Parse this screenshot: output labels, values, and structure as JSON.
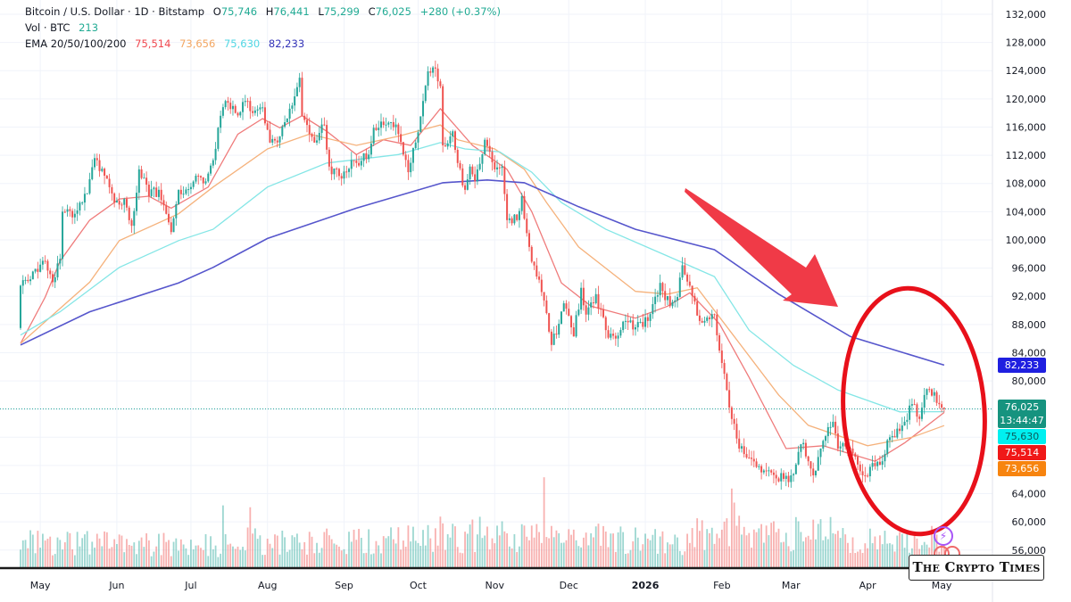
{
  "header": {
    "symbol": "Bitcoin / U.S. Dollar · 1D · Bitstamp",
    "open_label": "O",
    "open": "75,746",
    "high_label": "H",
    "high": "76,441",
    "low_label": "L",
    "low": "75,299",
    "close_label": "C",
    "close": "76,025",
    "change": "+280 (+0.37%)",
    "volume_label": "Vol · BTC",
    "volume": "213",
    "ema_label": "EMA 20/50/100/200",
    "ema20": "75,514",
    "ema50": "73,656",
    "ema100": "75,630",
    "ema200": "82,233"
  },
  "price_labels": {
    "ema200": "82,233",
    "last_price": "76,025",
    "countdown": "13:44:47",
    "ema100": "75,630",
    "ema20": "75,514",
    "ema50": "73,656"
  },
  "colors": {
    "up": "#26a69a",
    "down": "#ef5350",
    "ema20": "#ef7b7b",
    "ema50": "#f5b27c",
    "ema100": "#84e6e6",
    "ema200": "#5656cc",
    "ema20_label": "#f01818",
    "ema50_label": "#f7840f",
    "ema100_label": "#00f0f0",
    "ema200_label": "#1f1fe0",
    "last_price_label": "#16937f",
    "annotation": "#ee1c25"
  },
  "watermark": "The Crypto Times",
  "chart_data": {
    "type": "candlestick",
    "title": "Bitcoin / U.S. Dollar · 1D · Bitstamp",
    "ylim": [
      54000,
      132000
    ],
    "y_ticks": [
      "132,000",
      "128,000",
      "124,000",
      "120,000",
      "116,000",
      "112,000",
      "108,000",
      "104,000",
      "100,000",
      "96,000",
      "92,000",
      "88,000",
      "84,000",
      "80,000",
      "64,000",
      "60,000",
      "56,000"
    ],
    "y_tick_values": [
      132000,
      128000,
      124000,
      120000,
      116000,
      112000,
      108000,
      104000,
      100000,
      96000,
      92000,
      88000,
      84000,
      80000,
      64000,
      60000,
      56000
    ],
    "x_ticks": [
      {
        "date": "2025-05-01",
        "label": "May"
      },
      {
        "date": "2025-06-01",
        "label": "Jun"
      },
      {
        "date": "2025-07-01",
        "label": "Jul"
      },
      {
        "date": "2025-08-01",
        "label": "Aug"
      },
      {
        "date": "2025-09-01",
        "label": "Sep"
      },
      {
        "date": "2025-10-01",
        "label": "Oct"
      },
      {
        "date": "2025-11-01",
        "label": "Nov"
      },
      {
        "date": "2025-12-01",
        "label": "Dec"
      },
      {
        "date": "2026-01-01",
        "label": "2026"
      },
      {
        "date": "2026-02-01",
        "label": "Feb"
      },
      {
        "date": "2026-03-01",
        "label": "Mar"
      },
      {
        "date": "2026-04-01",
        "label": "Apr"
      },
      {
        "date": "2026-05-01",
        "label": "May"
      }
    ],
    "grid": true,
    "close_series": [
      [
        "2025-04-23",
        93500
      ],
      [
        "2025-04-27",
        94400
      ],
      [
        "2025-05-03",
        97000
      ],
      [
        "2025-05-06",
        94000
      ],
      [
        "2025-05-09",
        97300
      ],
      [
        "2025-05-10",
        104000
      ],
      [
        "2025-05-15",
        103700
      ],
      [
        "2025-05-20",
        106600
      ],
      [
        "2025-05-23",
        111600
      ],
      [
        "2025-05-27",
        109100
      ],
      [
        "2025-05-31",
        105300
      ],
      [
        "2025-06-04",
        105800
      ],
      [
        "2025-06-07",
        102000
      ],
      [
        "2025-06-10",
        110000
      ],
      [
        "2025-06-14",
        106200
      ],
      [
        "2025-06-18",
        107100
      ],
      [
        "2025-06-20",
        104900
      ],
      [
        "2025-06-23",
        101100
      ],
      [
        "2025-06-26",
        107100
      ],
      [
        "2025-07-01",
        107500
      ],
      [
        "2025-07-03",
        109100
      ],
      [
        "2025-07-07",
        108300
      ],
      [
        "2025-07-10",
        111300
      ],
      [
        "2025-07-13",
        117600
      ],
      [
        "2025-07-15",
        119700
      ],
      [
        "2025-07-19",
        118000
      ],
      [
        "2025-07-24",
        119700
      ],
      [
        "2025-07-26",
        118000
      ],
      [
        "2025-07-30",
        118800
      ],
      [
        "2025-08-02",
        113800
      ],
      [
        "2025-08-06",
        114700
      ],
      [
        "2025-08-09",
        117200
      ],
      [
        "2025-08-14",
        123000
      ],
      [
        "2025-08-15",
        117600
      ],
      [
        "2025-08-20",
        113800
      ],
      [
        "2025-08-24",
        116300
      ],
      [
        "2025-08-26",
        110400
      ],
      [
        "2025-08-31",
        108700
      ],
      [
        "2025-09-04",
        111300
      ],
      [
        "2025-09-06",
        110900
      ],
      [
        "2025-09-11",
        112100
      ],
      [
        "2025-09-13",
        115900
      ],
      [
        "2025-09-20",
        116700
      ],
      [
        "2025-09-23",
        115000
      ],
      [
        "2025-09-25",
        112100
      ],
      [
        "2025-09-27",
        109600
      ],
      [
        "2025-09-30",
        113800
      ],
      [
        "2025-10-03",
        119700
      ],
      [
        "2025-10-05",
        123900
      ],
      [
        "2025-10-08",
        124300
      ],
      [
        "2025-10-10",
        121800
      ],
      [
        "2025-10-11",
        113400
      ],
      [
        "2025-10-15",
        115400
      ],
      [
        "2025-10-17",
        110900
      ],
      [
        "2025-10-20",
        107100
      ],
      [
        "2025-10-22",
        110400
      ],
      [
        "2025-10-24",
        108300
      ],
      [
        "2025-10-28",
        114200
      ],
      [
        "2025-10-30",
        112500
      ],
      [
        "2025-11-01",
        110000
      ],
      [
        "2025-11-04",
        110400
      ],
      [
        "2025-11-06",
        102800
      ],
      [
        "2025-11-10",
        102800
      ],
      [
        "2025-11-12",
        106200
      ],
      [
        "2025-11-15",
        99000
      ],
      [
        "2025-11-18",
        94800
      ],
      [
        "2025-11-21",
        91400
      ],
      [
        "2025-11-24",
        85100
      ],
      [
        "2025-11-27",
        88100
      ],
      [
        "2025-11-29",
        91000
      ],
      [
        "2025-12-03",
        86300
      ],
      [
        "2025-12-06",
        93200
      ],
      [
        "2025-12-08",
        89400
      ],
      [
        "2025-12-12",
        92300
      ],
      [
        "2025-12-16",
        87200
      ],
      [
        "2025-12-20",
        86000
      ],
      [
        "2025-12-24",
        88500
      ],
      [
        "2025-12-28",
        87600
      ],
      [
        "2026-01-02",
        88500
      ],
      [
        "2026-01-07",
        93900
      ],
      [
        "2026-01-11",
        90600
      ],
      [
        "2026-01-14",
        91900
      ],
      [
        "2026-01-16",
        96400
      ],
      [
        "2026-01-19",
        93500
      ],
      [
        "2026-01-23",
        88500
      ],
      [
        "2026-01-29",
        89400
      ],
      [
        "2026-01-31",
        84300
      ],
      [
        "2026-02-03",
        78700
      ],
      [
        "2026-02-05",
        74600
      ],
      [
        "2026-02-08",
        70400
      ],
      [
        "2026-02-12",
        69100
      ],
      [
        "2026-02-16",
        67900
      ],
      [
        "2026-02-21",
        67000
      ],
      [
        "2026-02-26",
        66100
      ],
      [
        "2026-03-01",
        66600
      ],
      [
        "2026-03-06",
        71200
      ],
      [
        "2026-03-10",
        66600
      ],
      [
        "2026-03-13",
        70400
      ],
      [
        "2026-03-18",
        74200
      ],
      [
        "2026-03-20",
        70400
      ],
      [
        "2026-03-25",
        70400
      ],
      [
        "2026-03-30",
        66600
      ],
      [
        "2026-04-04",
        67900
      ],
      [
        "2026-04-07",
        68600
      ],
      [
        "2026-04-10",
        72000
      ],
      [
        "2026-04-14",
        72900
      ],
      [
        "2026-04-16",
        74200
      ],
      [
        "2026-04-19",
        76700
      ],
      [
        "2026-04-22",
        74600
      ],
      [
        "2026-04-24",
        78000
      ],
      [
        "2026-04-28",
        78400
      ],
      [
        "2026-05-01",
        76200
      ],
      [
        "2026-05-02",
        76025
      ]
    ],
    "last_price": 76025,
    "series": [
      {
        "name": "EMA 20",
        "points": [
          [
            "2025-04-23",
            85300
          ],
          [
            "2025-05-03",
            91900
          ],
          [
            "2025-05-09",
            97000
          ],
          [
            "2025-05-21",
            102800
          ],
          [
            "2025-06-02",
            105800
          ],
          [
            "2025-06-14",
            106200
          ],
          [
            "2025-06-23",
            104500
          ],
          [
            "2025-07-08",
            107500
          ],
          [
            "2025-07-20",
            115000
          ],
          [
            "2025-07-30",
            117200
          ],
          [
            "2025-08-06",
            115900
          ],
          [
            "2025-08-15",
            117600
          ],
          [
            "2025-08-25",
            115400
          ],
          [
            "2025-09-06",
            112100
          ],
          [
            "2025-09-17",
            114200
          ],
          [
            "2025-09-28",
            113400
          ],
          [
            "2025-10-10",
            118600
          ],
          [
            "2025-10-23",
            113400
          ],
          [
            "2025-11-06",
            110000
          ],
          [
            "2025-11-16",
            104000
          ],
          [
            "2025-11-28",
            93900
          ],
          [
            "2025-12-10",
            90600
          ],
          [
            "2025-12-28",
            88900
          ],
          [
            "2026-01-10",
            90600
          ],
          [
            "2026-01-19",
            92500
          ],
          [
            "2026-01-31",
            88100
          ],
          [
            "2026-02-12",
            80500
          ],
          [
            "2026-02-27",
            70400
          ],
          [
            "2026-03-14",
            70800
          ],
          [
            "2026-04-04",
            68600
          ],
          [
            "2026-04-16",
            71200
          ],
          [
            "2026-05-02",
            75514
          ]
        ]
      },
      {
        "name": "EMA 50",
        "points": [
          [
            "2025-04-23",
            85300
          ],
          [
            "2025-05-21",
            94000
          ],
          [
            "2025-06-02",
            99900
          ],
          [
            "2025-06-26",
            103700
          ],
          [
            "2025-07-10",
            107500
          ],
          [
            "2025-08-01",
            112900
          ],
          [
            "2025-08-18",
            115000
          ],
          [
            "2025-09-06",
            113400
          ],
          [
            "2025-09-23",
            114700
          ],
          [
            "2025-10-10",
            116300
          ],
          [
            "2025-10-17",
            114200
          ],
          [
            "2025-11-01",
            112900
          ],
          [
            "2025-11-13",
            110000
          ],
          [
            "2025-11-22",
            105300
          ],
          [
            "2025-12-05",
            99000
          ],
          [
            "2025-12-28",
            92700
          ],
          [
            "2026-01-10",
            92300
          ],
          [
            "2026-01-22",
            93200
          ],
          [
            "2026-02-06",
            86300
          ],
          [
            "2026-02-24",
            78000
          ],
          [
            "2026-03-08",
            73700
          ],
          [
            "2026-04-01",
            70800
          ],
          [
            "2026-04-19",
            72000
          ],
          [
            "2026-05-02",
            73656
          ]
        ]
      },
      {
        "name": "EMA 100",
        "points": [
          [
            "2025-04-23",
            86500
          ],
          [
            "2025-05-09",
            89800
          ],
          [
            "2025-06-02",
            96100
          ],
          [
            "2025-06-26",
            99900
          ],
          [
            "2025-07-10",
            101500
          ],
          [
            "2025-08-01",
            107500
          ],
          [
            "2025-08-25",
            110900
          ],
          [
            "2025-09-11",
            111600
          ],
          [
            "2025-09-23",
            112100
          ],
          [
            "2025-10-10",
            113800
          ],
          [
            "2025-10-20",
            112900
          ],
          [
            "2025-11-03",
            112500
          ],
          [
            "2025-11-16",
            109600
          ],
          [
            "2025-11-28",
            105300
          ],
          [
            "2025-12-16",
            101500
          ],
          [
            "2026-01-10",
            97700
          ],
          [
            "2026-01-29",
            94800
          ],
          [
            "2026-02-12",
            87200
          ],
          [
            "2026-03-02",
            82200
          ],
          [
            "2026-03-20",
            78700
          ],
          [
            "2026-04-14",
            75600
          ],
          [
            "2026-05-02",
            75630
          ]
        ]
      },
      {
        "name": "EMA 200",
        "points": [
          [
            "2025-04-23",
            85100
          ],
          [
            "2025-05-21",
            89800
          ],
          [
            "2025-06-26",
            93900
          ],
          [
            "2025-07-10",
            96100
          ],
          [
            "2025-08-01",
            100200
          ],
          [
            "2025-09-06",
            104500
          ],
          [
            "2025-10-11",
            108100
          ],
          [
            "2025-10-29",
            108500
          ],
          [
            "2025-11-13",
            108100
          ],
          [
            "2025-12-05",
            104700
          ],
          [
            "2025-12-28",
            101500
          ],
          [
            "2026-01-29",
            98600
          ],
          [
            "2026-02-24",
            92300
          ],
          [
            "2026-03-25",
            86300
          ],
          [
            "2026-05-02",
            82233
          ]
        ]
      }
    ],
    "volume_relative_monthly": [
      0.28,
      0.28,
      0.25,
      0.3,
      0.3,
      0.33,
      0.38,
      0.33,
      0.3,
      0.4,
      0.38,
      0.3,
      0.3
    ],
    "volume_spikes": [
      [
        "2025-07-14",
        0.67
      ],
      [
        "2025-07-25",
        0.65
      ],
      [
        "2025-10-10",
        0.55
      ],
      [
        "2025-11-04",
        0.5
      ],
      [
        "2025-11-21",
        0.97
      ],
      [
        "2026-02-05",
        0.85
      ],
      [
        "2026-02-06",
        0.7
      ],
      [
        "2026-03-04",
        0.5
      ],
      [
        "2026-04-27",
        0.45
      ]
    ]
  }
}
